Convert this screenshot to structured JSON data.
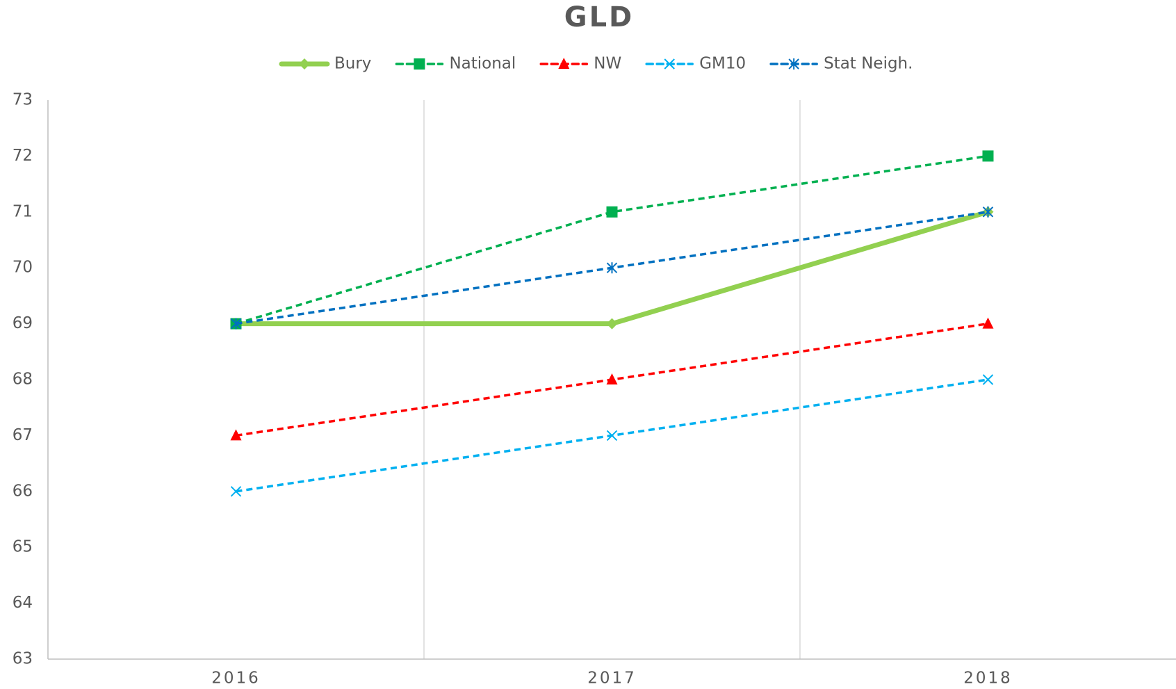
{
  "chart_data": {
    "type": "line",
    "title": "GLD",
    "categories": [
      "2016",
      "2017",
      "2018"
    ],
    "series": [
      {
        "name": "Bury",
        "color": "#92d050",
        "values": [
          69,
          69,
          71
        ],
        "dashed": false,
        "marker": "diamond",
        "width": 7
      },
      {
        "name": "National",
        "color": "#00b050",
        "values": [
          69,
          71,
          72
        ],
        "dashed": true,
        "marker": "square",
        "width": 3.5
      },
      {
        "name": "NW",
        "color": "#ff0000",
        "values": [
          67,
          68,
          69
        ],
        "dashed": true,
        "marker": "triangle",
        "width": 3.5
      },
      {
        "name": "GM10",
        "color": "#00b0f0",
        "values": [
          66,
          67,
          68
        ],
        "dashed": true,
        "marker": "x",
        "width": 3.5
      },
      {
        "name": "Stat Neigh.",
        "color": "#0070c0",
        "values": [
          69,
          70,
          71
        ],
        "dashed": true,
        "marker": "star",
        "width": 3.5
      }
    ],
    "ylim": [
      63,
      73
    ],
    "yticks": [
      63,
      64,
      65,
      66,
      67,
      68,
      69,
      70,
      71,
      72,
      73
    ],
    "grid": "x",
    "legend": "top"
  }
}
